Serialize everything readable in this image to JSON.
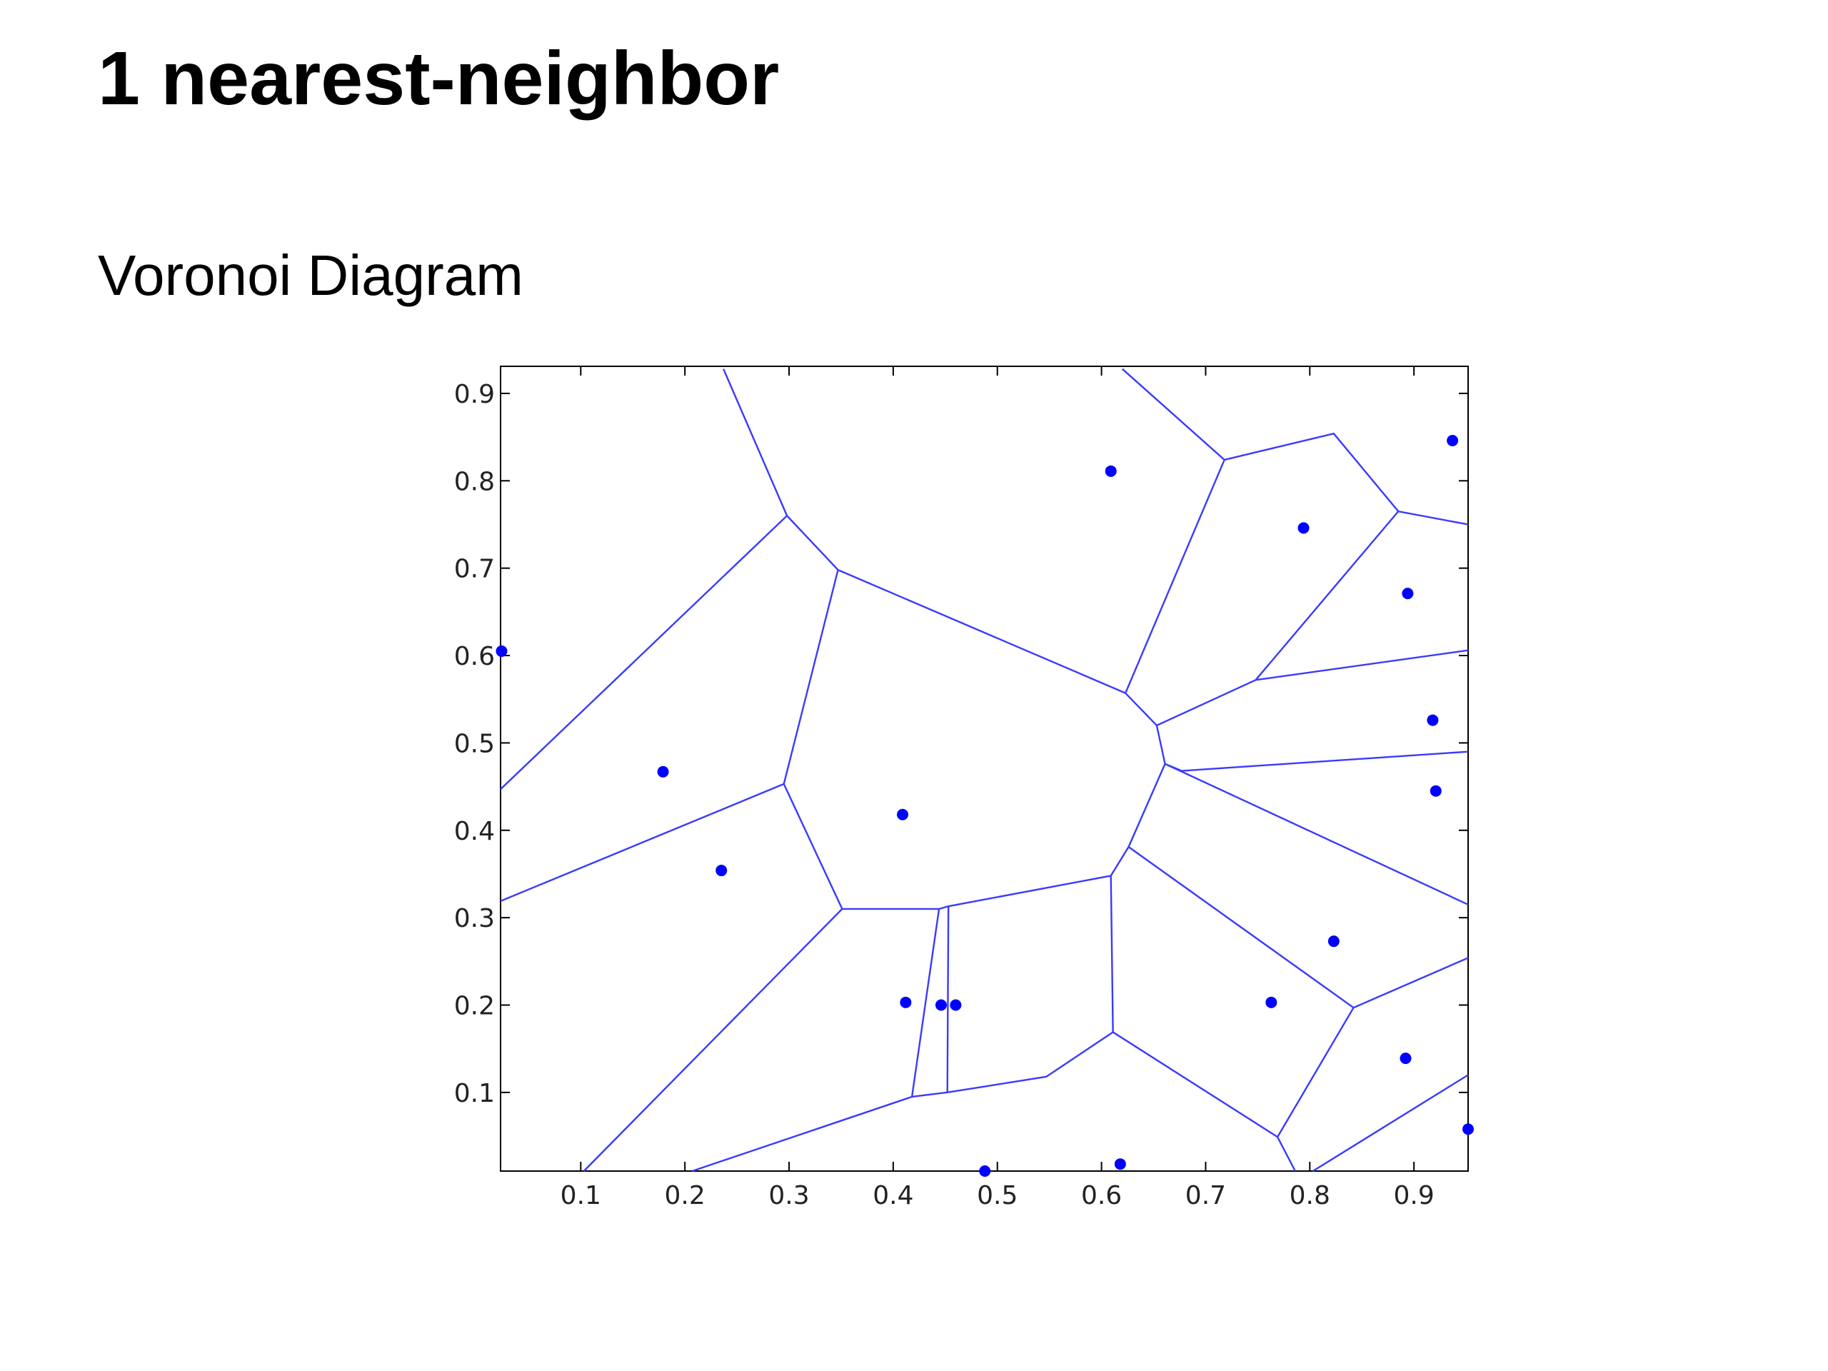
{
  "header": {
    "title": "1 nearest-neighbor",
    "subtitle": "Voronoi Diagram"
  },
  "chart_data": {
    "type": "scatter",
    "x": [
      0.937,
      0.609,
      0.794,
      0.894,
      0.024,
      0.918,
      0.179,
      0.921,
      0.409,
      0.235,
      0.823,
      0.412,
      0.446,
      0.46,
      0.763,
      0.892,
      0.952,
      0.488,
      0.618
    ],
    "y": [
      0.846,
      0.811,
      0.746,
      0.671,
      0.605,
      0.526,
      0.467,
      0.445,
      0.418,
      0.354,
      0.273,
      0.203,
      0.2,
      0.2,
      0.203,
      0.139,
      0.058,
      0.01,
      0.018
    ],
    "color": "#0000ff",
    "edges": {
      "color": "#3a3aff",
      "x": [
        0.237,
        0.298,
        0.023,
        null,
        0.298,
        0.347,
        0.295,
        0.351,
        0.103,
        null,
        0.347,
        0.623,
        0.718,
        0.62,
        null,
        0.295,
        0.023,
        null,
        0.351,
        0.444,
        0.418,
        0.207,
        null,
        0.444,
        0.453,
        0.452,
        null,
        0.418,
        0.452,
        0.547,
        0.611,
        0.609,
        0.453,
        null,
        0.609,
        0.626,
        0.661,
        0.653,
        0.623,
        null,
        0.611,
        0.769,
        0.786,
        null,
        0.769,
        0.842,
        0.952,
        null,
        0.842,
        0.626,
        null,
        0.803,
        0.952,
        null,
        0.718,
        0.823,
        0.885,
        0.952,
        null,
        0.885,
        0.748,
        0.952,
        null,
        0.748,
        0.653,
        null,
        0.661,
        0.677,
        0.952,
        null,
        0.661,
        0.952
      ],
      "y": [
        0.928,
        0.76,
        0.447,
        null,
        0.76,
        0.698,
        0.453,
        0.31,
        0.01,
        null,
        0.698,
        0.557,
        0.824,
        0.928,
        null,
        0.453,
        0.319,
        null,
        0.31,
        0.31,
        0.095,
        0.01,
        null,
        0.31,
        0.313,
        0.1,
        null,
        0.095,
        0.1,
        0.118,
        0.169,
        0.348,
        0.313,
        null,
        0.348,
        0.381,
        0.476,
        0.52,
        0.557,
        null,
        0.169,
        0.049,
        0.01,
        null,
        0.049,
        0.197,
        0.254,
        null,
        0.197,
        0.381,
        null,
        0.01,
        0.12,
        null,
        0.824,
        0.854,
        0.765,
        0.75,
        null,
        0.765,
        0.572,
        0.606,
        null,
        0.572,
        0.52,
        null,
        0.476,
        0.468,
        0.49,
        null,
        0.476,
        0.315
      ]
    },
    "xlim": [
      0.023,
      0.952
    ],
    "ylim": [
      0.01,
      0.931
    ],
    "xticks": [
      0.1,
      0.2,
      0.3,
      0.4,
      0.5,
      0.6,
      0.7,
      0.8,
      0.9
    ],
    "yticks": [
      0.1,
      0.2,
      0.3,
      0.4,
      0.5,
      0.6,
      0.7,
      0.8,
      0.9
    ]
  }
}
